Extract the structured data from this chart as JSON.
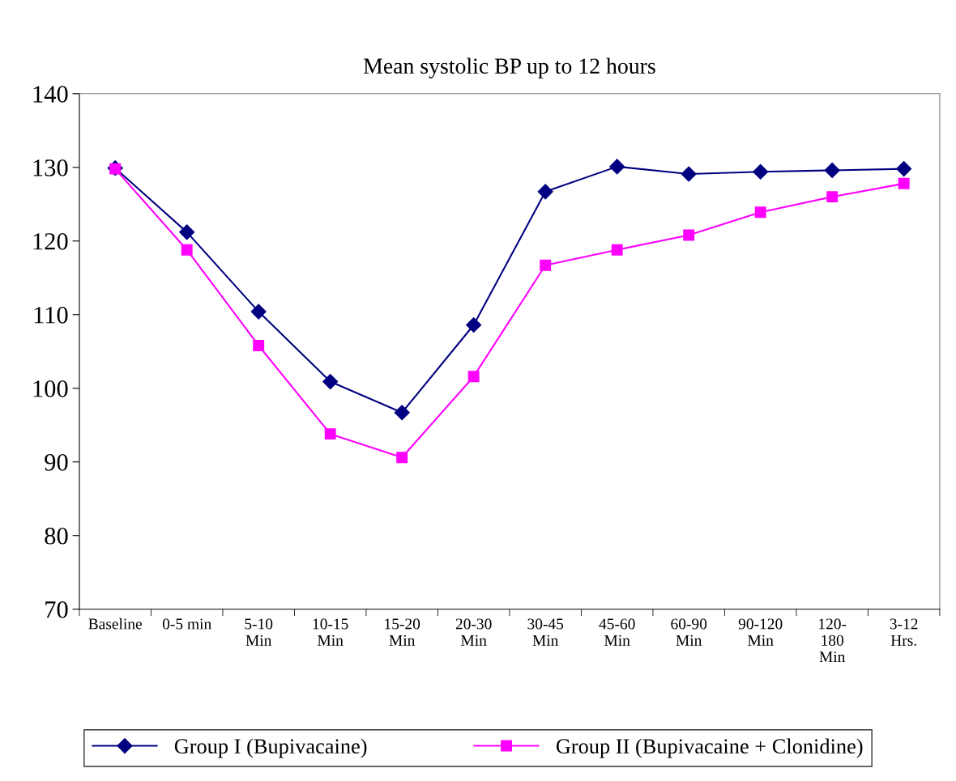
{
  "chart_data": {
    "type": "line",
    "title": "Mean systolic BP up to 12 hours",
    "categories": [
      "Baseline",
      "0-5 min",
      "5-10\nMin",
      "10-15\nMin",
      "15-20\nMin",
      "20-30\nMin",
      "30-45\nMin",
      "45-60\nMin",
      "60-90\nMin",
      "90-120\nMin",
      "120-\n180\nMin",
      "3-12\nHrs."
    ],
    "series": [
      {
        "name": "Group I (Bupivacaine)",
        "color": "#000080",
        "marker": "diamond",
        "values": [
          129.9,
          121.2,
          110.4,
          100.9,
          96.7,
          108.6,
          126.7,
          130.1,
          129.1,
          129.4,
          129.6,
          129.8
        ]
      },
      {
        "name": "Group II (Bupivacaine + Clonidine)",
        "color": "#ff00ff",
        "marker": "square",
        "values": [
          129.8,
          118.8,
          105.8,
          93.8,
          90.6,
          101.6,
          116.7,
          118.8,
          120.8,
          123.9,
          126.0,
          127.8
        ]
      }
    ],
    "ylim": [
      70,
      140
    ],
    "yticks": [
      70,
      80,
      90,
      100,
      110,
      120,
      130,
      140
    ],
    "grid": false,
    "legend": "bottom",
    "line_style": "solid"
  }
}
